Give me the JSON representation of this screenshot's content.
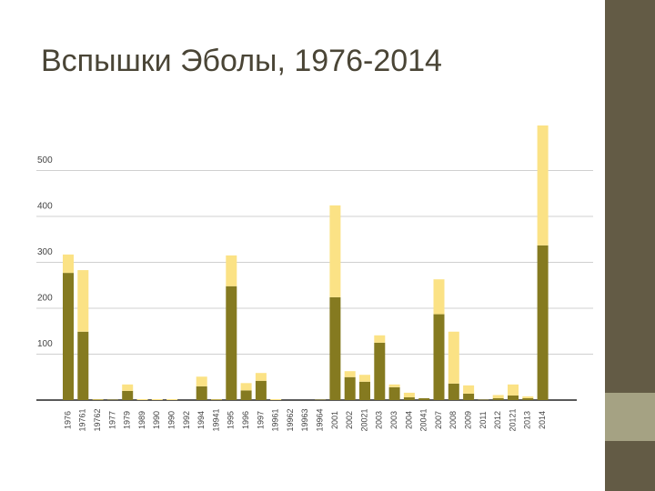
{
  "chart_data": {
    "type": "stacked_bar",
    "title": "Вспышки Эболы, 1976-2014",
    "categories": [
      "1976",
      "19761",
      "19762",
      "1977",
      "1979",
      "1989",
      "1990",
      "1990",
      "1992",
      "1994",
      "19941",
      "1995",
      "1996",
      "1997",
      "19961",
      "19962",
      "19963",
      "19964",
      "2001",
      "2002",
      "20021",
      "2003",
      "2003",
      "2004",
      "20041",
      "2007",
      "2008",
      "2009",
      "2011",
      "2012",
      "20121",
      "2013",
      "2014"
    ],
    "series": [
      {
        "color": "#857a20",
        "values": [
          277,
          149,
          1,
          1,
          20,
          0,
          0,
          0,
          0,
          30,
          1,
          248,
          21,
          42,
          0,
          0,
          0,
          1,
          224,
          50,
          40,
          125,
          28,
          6,
          4,
          187,
          36,
          14,
          1,
          4,
          10,
          4,
          337
        ]
      },
      {
        "color": "#fbe285",
        "values": [
          40,
          134,
          1,
          0,
          14,
          2,
          2,
          2,
          0,
          21,
          1,
          67,
          16,
          17,
          2,
          0,
          0,
          0,
          200,
          13,
          15,
          16,
          6,
          10,
          0,
          76,
          113,
          18,
          0,
          7,
          24,
          4,
          261
        ]
      }
    ],
    "ylim": [
      0,
      600
    ],
    "yticks": [
      100,
      200,
      300,
      400,
      500
    ],
    "grid": true
  }
}
